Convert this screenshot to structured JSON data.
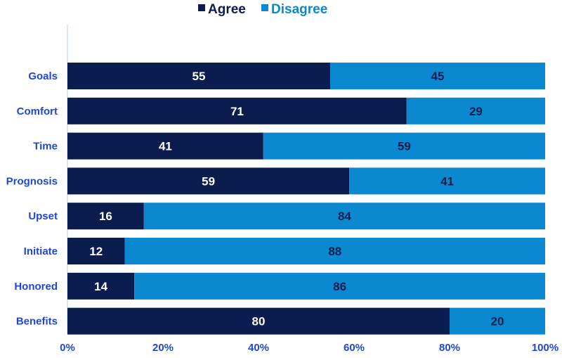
{
  "chart_data": {
    "type": "bar",
    "orientation": "horizontal",
    "stacked": true,
    "percent_stacked": true,
    "categories": [
      "Goals",
      "Comfort",
      "Time",
      "Prognosis",
      "Upset",
      "Initiate",
      "Honored",
      "Benefits"
    ],
    "series": [
      {
        "name": "Agree",
        "values": [
          55,
          71,
          41,
          59,
          16,
          12,
          14,
          80
        ],
        "color": "#0b1d4e",
        "label_color": "#ffffff"
      },
      {
        "name": "Disagree",
        "values": [
          45,
          29,
          59,
          41,
          84,
          88,
          86,
          20
        ],
        "color": "#0a88d0",
        "label_color": "#0b1d4e"
      }
    ],
    "x_ticks": [
      "0%",
      "20%",
      "40%",
      "60%",
      "80%",
      "100%"
    ],
    "xlim": [
      0,
      100
    ],
    "legend_position": "top",
    "grid": false,
    "category_label_color": "#1f47d6",
    "tick_label_color": "#1f47d6",
    "axis_color": "#b8cde8"
  }
}
